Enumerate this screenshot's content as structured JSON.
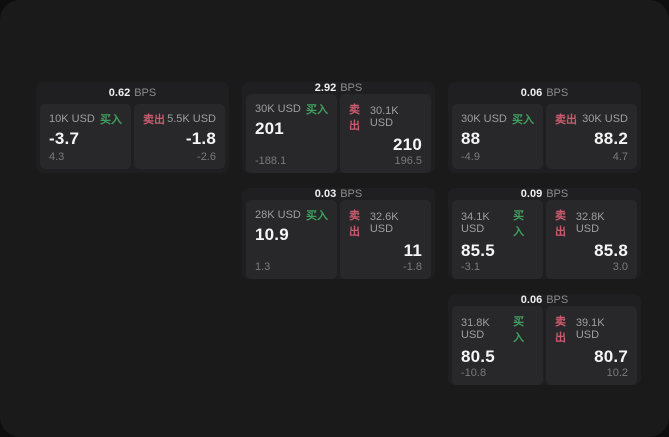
{
  "labels": {
    "bps_suffix": "BPS",
    "buy": "买入",
    "sell": "卖出"
  },
  "colors": {
    "buy": "#3f9e5f",
    "sell": "#cb5a6e",
    "panel_bg": "#1a1a1b",
    "card_bg": "#1f1f21",
    "subcard_bg": "#28282a"
  },
  "cards": [
    {
      "row": 1,
      "col": 1,
      "bps": "0.62",
      "buy": {
        "amount": "10K USD",
        "value": "-3.7",
        "change": "4.3"
      },
      "sell": {
        "amount": "5.5K USD",
        "value": "-1.8",
        "change": "-2.6"
      }
    },
    {
      "row": 1,
      "col": 2,
      "bps": "2.92",
      "buy": {
        "amount": "30K USD",
        "value": "201",
        "change": "-188.1"
      },
      "sell": {
        "amount": "30.1K USD",
        "value": "210",
        "change": "196.5"
      }
    },
    {
      "row": 1,
      "col": 3,
      "bps": "0.06",
      "buy": {
        "amount": "30K USD",
        "value": "88",
        "change": "-4.9"
      },
      "sell": {
        "amount": "30K USD",
        "value": "88.2",
        "change": "4.7"
      }
    },
    {
      "row": 2,
      "col": 2,
      "bps": "0.03",
      "buy": {
        "amount": "28K USD",
        "value": "10.9",
        "change": "1.3"
      },
      "sell": {
        "amount": "32.6K USD",
        "value": "11",
        "change": "-1.8"
      }
    },
    {
      "row": 2,
      "col": 3,
      "bps": "0.09",
      "buy": {
        "amount": "34.1K USD",
        "value": "85.5",
        "change": "-3.1"
      },
      "sell": {
        "amount": "32.8K USD",
        "value": "85.8",
        "change": "3.0"
      }
    },
    {
      "row": 3,
      "col": 3,
      "bps": "0.06",
      "buy": {
        "amount": "31.8K USD",
        "value": "80.5",
        "change": "-10.8"
      },
      "sell": {
        "amount": "39.1K USD",
        "value": "80.7",
        "change": "10.2"
      }
    }
  ]
}
